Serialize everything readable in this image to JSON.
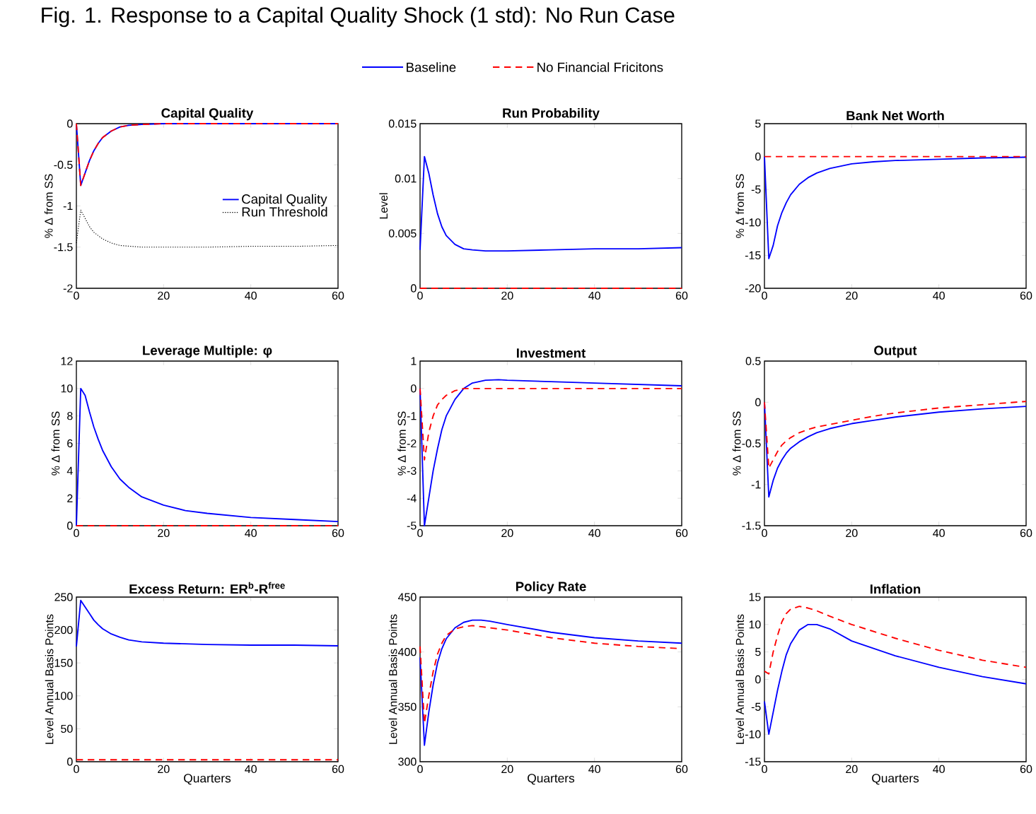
{
  "chart_data": [
    {
      "type": "other",
      "title": "Fig. 1. Response to a Capital Quality Shock (1 std): No Run Case",
      "legend": "top",
      "series": [
        {
          "name": "Baseline",
          "color": "#0000ff",
          "line_style": "solid"
        },
        {
          "name": "No Financial Fricitons",
          "color": "#ff0000",
          "line_style": "dashed"
        }
      ]
    },
    {
      "type": "line",
      "title": "Capital Quality",
      "ylabel": "% Δ from SS",
      "xlim": [
        0,
        60
      ],
      "xticks": [
        0,
        20,
        40,
        60
      ],
      "ylim": [
        -2,
        0
      ],
      "yticks": [
        -2,
        -1.5,
        -1,
        -0.5,
        0
      ],
      "legend": "right",
      "series": [
        {
          "name": "Capital Quality",
          "color": "#0000ff",
          "line_style": "solid",
          "x": [
            0,
            1,
            2,
            3,
            4,
            5,
            6,
            8,
            10,
            12,
            15,
            20,
            30,
            60
          ],
          "values": [
            0,
            -0.75,
            -0.6,
            -0.45,
            -0.33,
            -0.24,
            -0.17,
            -0.09,
            -0.04,
            -0.02,
            -0.01,
            0,
            0,
            0
          ]
        },
        {
          "color": "#ff0000",
          "line_style": "dashed",
          "x": [
            0,
            1,
            2,
            3,
            4,
            5,
            6,
            8,
            10,
            12,
            15,
            20,
            30,
            60
          ],
          "values": [
            0,
            -0.75,
            -0.6,
            -0.45,
            -0.33,
            -0.24,
            -0.17,
            -0.09,
            -0.04,
            -0.02,
            -0.01,
            0,
            0,
            0
          ]
        },
        {
          "name": "Run Threshold",
          "color": "#000000",
          "line_style": "dotted",
          "x": [
            0,
            1,
            2,
            3,
            4,
            6,
            8,
            10,
            15,
            20,
            30,
            40,
            50,
            60
          ],
          "values": [
            -1.45,
            -1.05,
            -1.15,
            -1.25,
            -1.32,
            -1.4,
            -1.45,
            -1.48,
            -1.5,
            -1.5,
            -1.5,
            -1.49,
            -1.49,
            -1.48
          ]
        }
      ]
    },
    {
      "type": "line",
      "title": "Run Probability",
      "ylabel": "Level",
      "xlim": [
        0,
        60
      ],
      "xticks": [
        0,
        20,
        40,
        60
      ],
      "ylim": [
        0,
        0.015
      ],
      "yticks": [
        0,
        0.005,
        0.01,
        0.015
      ],
      "series": [
        {
          "color": "#0000ff",
          "line_style": "solid",
          "x": [
            0,
            1,
            2,
            3,
            4,
            5,
            6,
            8,
            10,
            12,
            15,
            20,
            30,
            40,
            50,
            60
          ],
          "values": [
            0.0035,
            0.012,
            0.0105,
            0.0085,
            0.0068,
            0.0056,
            0.0048,
            0.004,
            0.0036,
            0.0035,
            0.0034,
            0.0034,
            0.0035,
            0.0036,
            0.0036,
            0.0037
          ]
        },
        {
          "color": "#ff0000",
          "line_style": "dashed",
          "x": [
            0,
            60
          ],
          "values": [
            0,
            0
          ]
        }
      ]
    },
    {
      "type": "line",
      "title": "Bank Net Worth",
      "ylabel": "% Δ from SS",
      "xlim": [
        0,
        60
      ],
      "xticks": [
        0,
        20,
        40,
        60
      ],
      "ylim": [
        -20,
        5
      ],
      "yticks": [
        -20,
        -15,
        -10,
        -5,
        0,
        5
      ],
      "series": [
        {
          "color": "#0000ff",
          "line_style": "solid",
          "x": [
            0,
            1,
            2,
            3,
            4,
            5,
            6,
            8,
            10,
            12,
            15,
            20,
            25,
            30,
            40,
            50,
            60
          ],
          "values": [
            0,
            -15.5,
            -13.5,
            -10.5,
            -8.5,
            -7,
            -5.8,
            -4.2,
            -3.2,
            -2.5,
            -1.8,
            -1.1,
            -0.8,
            -0.6,
            -0.4,
            -0.2,
            -0.1
          ]
        },
        {
          "color": "#ff0000",
          "line_style": "dashed",
          "x": [
            0,
            60
          ],
          "values": [
            0,
            0
          ]
        }
      ]
    },
    {
      "type": "line",
      "title": "Leverage Multiple: φ",
      "ylabel": "% Δ from SS",
      "xlim": [
        0,
        60
      ],
      "xticks": [
        0,
        20,
        40,
        60
      ],
      "ylim": [
        0,
        12
      ],
      "yticks": [
        0,
        2,
        4,
        6,
        8,
        10,
        12
      ],
      "series": [
        {
          "color": "#0000ff",
          "line_style": "solid",
          "x": [
            0,
            1,
            2,
            3,
            4,
            5,
            6,
            8,
            10,
            12,
            15,
            20,
            25,
            30,
            40,
            50,
            60
          ],
          "values": [
            0,
            10,
            9.5,
            8.3,
            7.2,
            6.3,
            5.5,
            4.3,
            3.4,
            2.8,
            2.1,
            1.5,
            1.1,
            0.9,
            0.6,
            0.45,
            0.3
          ]
        },
        {
          "color": "#ff0000",
          "line_style": "dashed",
          "x": [
            0,
            60
          ],
          "values": [
            0,
            0
          ]
        }
      ]
    },
    {
      "type": "line",
      "title": "Investment",
      "ylabel": "% Δ from SS",
      "xlim": [
        0,
        60
      ],
      "xticks": [
        0,
        20,
        40,
        60
      ],
      "ylim": [
        -5,
        1
      ],
      "yticks": [
        -5,
        -4,
        -3,
        -2,
        -1,
        0,
        1
      ],
      "series": [
        {
          "color": "#0000ff",
          "line_style": "solid",
          "x": [
            0,
            1,
            2,
            3,
            4,
            5,
            6,
            8,
            10,
            12,
            15,
            18,
            20,
            30,
            40,
            50,
            60
          ],
          "values": [
            0,
            -5,
            -4,
            -3,
            -2.2,
            -1.5,
            -1,
            -0.4,
            0,
            0.2,
            0.3,
            0.32,
            0.3,
            0.25,
            0.2,
            0.15,
            0.1
          ]
        },
        {
          "color": "#ff0000",
          "line_style": "dashed",
          "x": [
            0,
            1,
            2,
            3,
            4,
            5,
            6,
            8,
            10,
            12,
            15,
            20,
            30,
            60
          ],
          "values": [
            0,
            -2.6,
            -1.6,
            -1,
            -0.6,
            -0.4,
            -0.25,
            -0.08,
            0,
            0,
            0,
            0,
            0,
            0
          ]
        }
      ]
    },
    {
      "type": "line",
      "title": "Output",
      "ylabel": "% Δ from SS",
      "xlim": [
        0,
        60
      ],
      "xticks": [
        0,
        20,
        40,
        60
      ],
      "ylim": [
        -1.5,
        0.5
      ],
      "yticks": [
        -1.5,
        -1,
        -0.5,
        0,
        0.5
      ],
      "series": [
        {
          "color": "#0000ff",
          "line_style": "solid",
          "x": [
            0,
            1,
            2,
            3,
            4,
            5,
            6,
            8,
            10,
            12,
            15,
            20,
            25,
            30,
            40,
            50,
            60
          ],
          "values": [
            0,
            -1.15,
            -0.95,
            -0.8,
            -0.7,
            -0.62,
            -0.56,
            -0.48,
            -0.42,
            -0.37,
            -0.32,
            -0.26,
            -0.22,
            -0.18,
            -0.12,
            -0.08,
            -0.05
          ]
        },
        {
          "color": "#ff0000",
          "line_style": "dashed",
          "x": [
            0,
            1,
            2,
            3,
            4,
            5,
            6,
            8,
            10,
            12,
            15,
            20,
            25,
            30,
            40,
            50,
            60
          ],
          "values": [
            0,
            -0.8,
            -0.7,
            -0.6,
            -0.52,
            -0.47,
            -0.43,
            -0.37,
            -0.33,
            -0.3,
            -0.27,
            -0.22,
            -0.17,
            -0.13,
            -0.07,
            -0.03,
            0.01
          ]
        }
      ]
    },
    {
      "type": "line",
      "title": "Excess Return: ER$^{b}$-R$^{free}$",
      "ylabel": "Level Annual Basis Points",
      "xlabel": "Quarters",
      "xlim": [
        0,
        60
      ],
      "xticks": [
        0,
        20,
        40,
        60
      ],
      "ylim": [
        0,
        250
      ],
      "yticks": [
        0,
        50,
        100,
        150,
        200,
        250
      ],
      "series": [
        {
          "color": "#0000ff",
          "line_style": "solid",
          "x": [
            0,
            1,
            2,
            3,
            4,
            5,
            6,
            8,
            10,
            12,
            15,
            20,
            30,
            40,
            50,
            60
          ],
          "values": [
            175,
            245,
            235,
            225,
            215,
            208,
            202,
            194,
            189,
            185,
            182,
            180,
            178,
            177,
            177,
            176
          ]
        },
        {
          "color": "#ff0000",
          "line_style": "dashed",
          "x": [
            0,
            60
          ],
          "values": [
            3,
            3
          ]
        }
      ]
    },
    {
      "type": "line",
      "title": "Policy Rate",
      "ylabel": "Level Annual Basis Points",
      "xlabel": "Quarters",
      "xlim": [
        0,
        60
      ],
      "xticks": [
        0,
        20,
        40,
        60
      ],
      "ylim": [
        300,
        450
      ],
      "yticks": [
        300,
        350,
        400,
        450
      ],
      "series": [
        {
          "color": "#0000ff",
          "line_style": "solid",
          "x": [
            0,
            1,
            2,
            3,
            4,
            5,
            6,
            8,
            10,
            12,
            14,
            16,
            20,
            30,
            40,
            50,
            60
          ],
          "values": [
            395,
            315,
            345,
            370,
            390,
            403,
            412,
            422,
            427,
            429,
            429,
            428,
            425,
            418,
            413,
            410,
            408
          ]
        },
        {
          "color": "#ff0000",
          "line_style": "dashed",
          "x": [
            0,
            1,
            2,
            3,
            4,
            5,
            6,
            8,
            10,
            12,
            14,
            16,
            20,
            30,
            40,
            50,
            60
          ],
          "values": [
            405,
            335,
            360,
            382,
            398,
            408,
            415,
            421,
            423,
            424,
            423,
            422,
            420,
            413,
            408,
            405,
            403
          ]
        }
      ]
    },
    {
      "type": "line",
      "title": "Inflation",
      "ylabel": "Level Annual Basis Points",
      "xlabel": "Quarters",
      "xlim": [
        0,
        60
      ],
      "xticks": [
        0,
        20,
        40,
        60
      ],
      "ylim": [
        -15,
        15
      ],
      "yticks": [
        -15,
        -10,
        -5,
        0,
        5,
        10,
        15
      ],
      "series": [
        {
          "color": "#0000ff",
          "line_style": "solid",
          "x": [
            0,
            1,
            2,
            3,
            4,
            5,
            6,
            8,
            10,
            12,
            15,
            20,
            30,
            40,
            50,
            60
          ],
          "values": [
            -4,
            -10,
            -6,
            -2,
            1.5,
            4.5,
            6.5,
            9,
            10,
            10,
            9.2,
            7,
            4.3,
            2.2,
            0.5,
            -0.8
          ]
        },
        {
          "color": "#ff0000",
          "line_style": "dashed",
          "x": [
            0,
            1,
            2,
            3,
            4,
            5,
            6,
            8,
            10,
            12,
            15,
            20,
            30,
            40,
            50,
            60
          ],
          "values": [
            1.5,
            1,
            5,
            8,
            10.5,
            12,
            12.8,
            13.3,
            13,
            12.5,
            11.5,
            10,
            7.5,
            5.3,
            3.5,
            2.2
          ]
        }
      ]
    }
  ]
}
